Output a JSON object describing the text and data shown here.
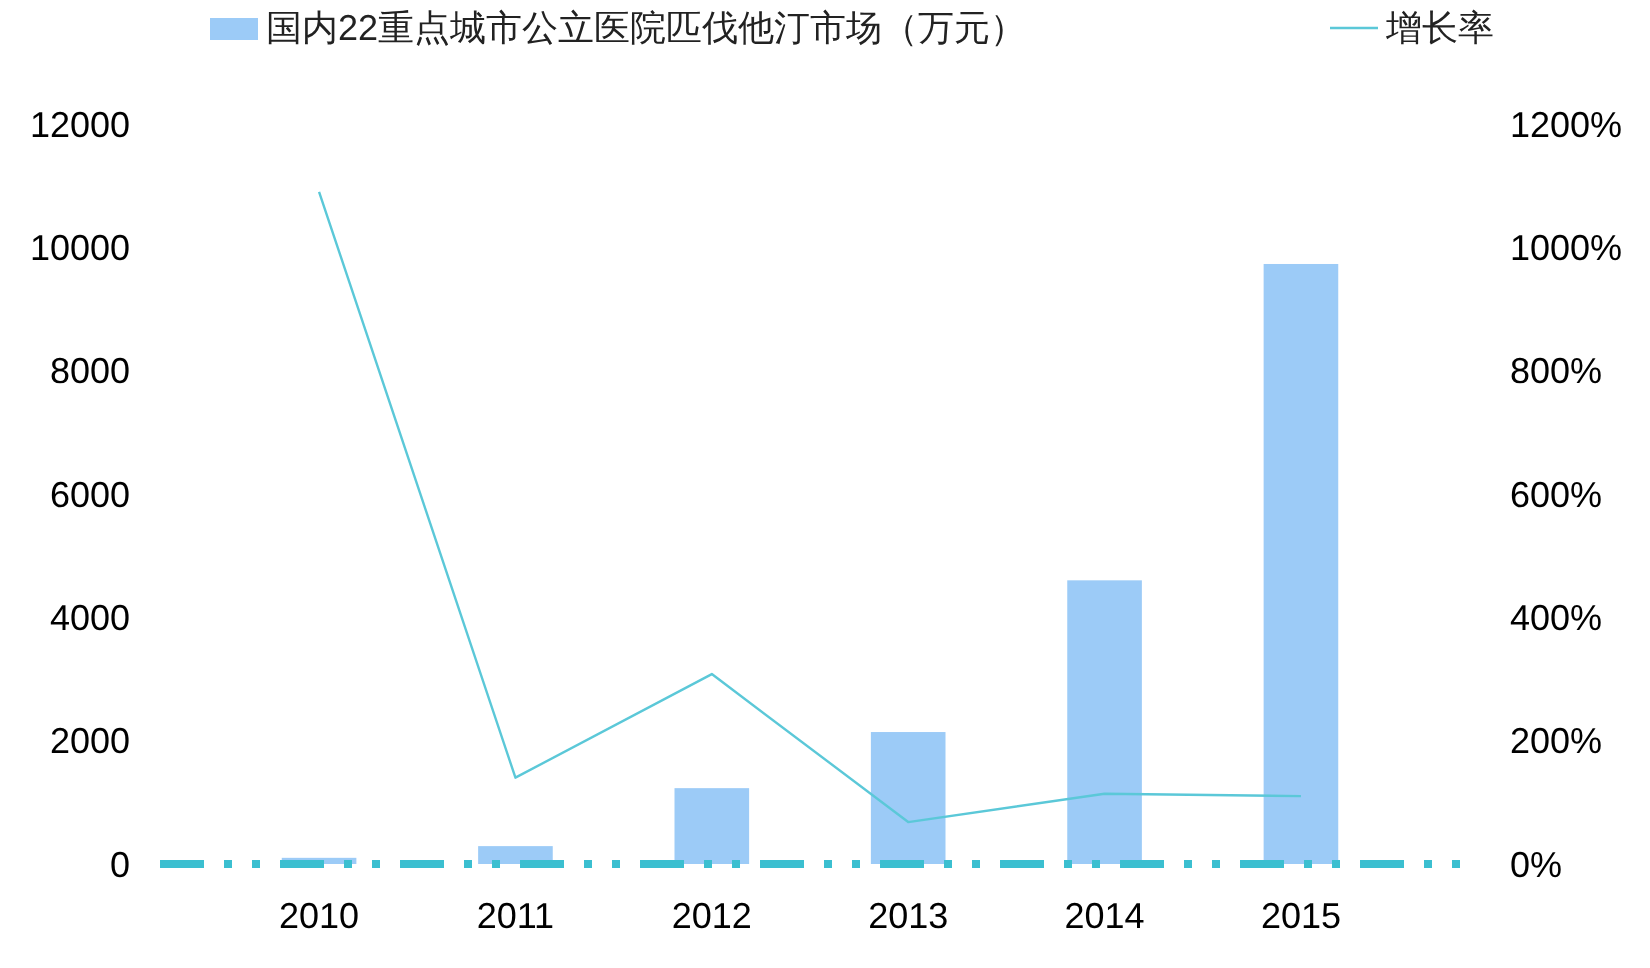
{
  "chart_data": {
    "type": "bar",
    "categories": [
      "2010",
      "2011",
      "2012",
      "2013",
      "2014",
      "2015"
    ],
    "series": [
      {
        "name": "国内22重点城市公立医院匹伐他汀市场（万元）",
        "color": "#9ccbf7",
        "values": [
          100,
          290,
          1230,
          2140,
          4600,
          9730
        ]
      },
      {
        "name": "增长率",
        "type": "line",
        "axis": "y2",
        "color": "#5bc8d8",
        "values": [
          1090,
          140,
          308,
          68,
          114,
          110
        ]
      }
    ],
    "ylim": [
      0,
      12000
    ],
    "yticks": [
      0,
      2000,
      4000,
      6000,
      8000,
      10000,
      12000
    ],
    "y2lim": [
      0,
      1200
    ],
    "y2ticks": [
      {
        "value": 0,
        "label": "0%"
      },
      {
        "value": 200,
        "label": "200%"
      },
      {
        "value": 400,
        "label": "400%"
      },
      {
        "value": 600,
        "label": "600%"
      },
      {
        "value": 800,
        "label": "800%"
      },
      {
        "value": 1000,
        "label": "1000%"
      },
      {
        "value": 1200,
        "label": "1200%"
      }
    ],
    "legend": "top",
    "grid": false,
    "marker": "none"
  }
}
